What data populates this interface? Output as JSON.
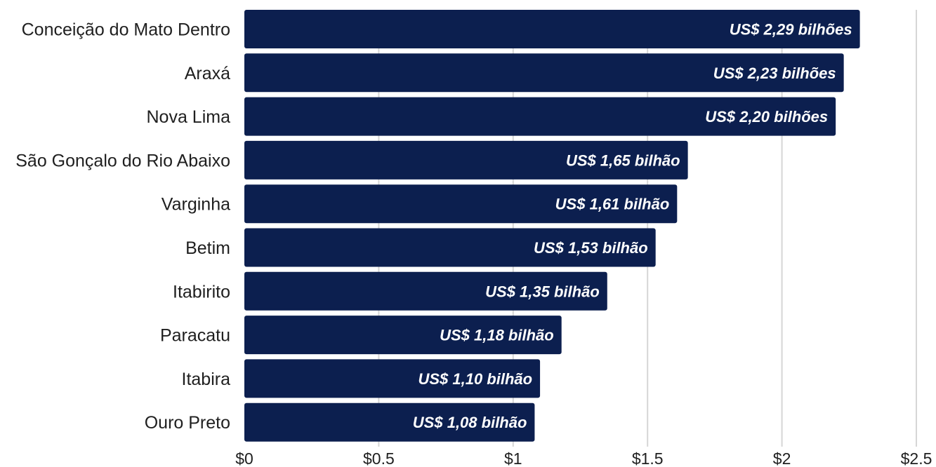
{
  "chart_data": {
    "type": "bar",
    "orientation": "horizontal",
    "title": "",
    "xlabel": "",
    "ylabel": "",
    "categories": [
      "Conceição do Mato Dentro",
      "Araxá",
      "Nova Lima",
      "São Gonçalo do Rio Abaixo",
      "Varginha",
      "Betim",
      "Itabirito",
      "Paracatu",
      "Itabira",
      "Ouro Preto"
    ],
    "values": [
      2.29,
      2.23,
      2.2,
      1.65,
      1.61,
      1.53,
      1.35,
      1.18,
      1.1,
      1.08
    ],
    "data_labels": [
      "US$ 2,29 bilhões",
      "US$ 2,23 bilhões",
      "US$ 2,20 bilhões",
      "US$ 1,65 bilhão",
      "US$ 1,61 bilhão",
      "US$ 1,53 bilhão",
      "US$ 1,35 bilhão",
      "US$ 1,18 bilhão",
      "US$ 1,10 bilhão",
      "US$ 1,08 bilhão"
    ],
    "x_ticks": [
      0,
      0.5,
      1,
      1.5,
      2,
      2.5
    ],
    "x_tick_labels": [
      "$0",
      "$0.5",
      "$1",
      "$1.5",
      "$2",
      "$2.5"
    ],
    "xlim": [
      0,
      2.5
    ],
    "grid": true,
    "legend": "none",
    "bar_color": "#0c1f4f",
    "label_color": "#ffffff",
    "grid_color": "#d6d6d6"
  }
}
